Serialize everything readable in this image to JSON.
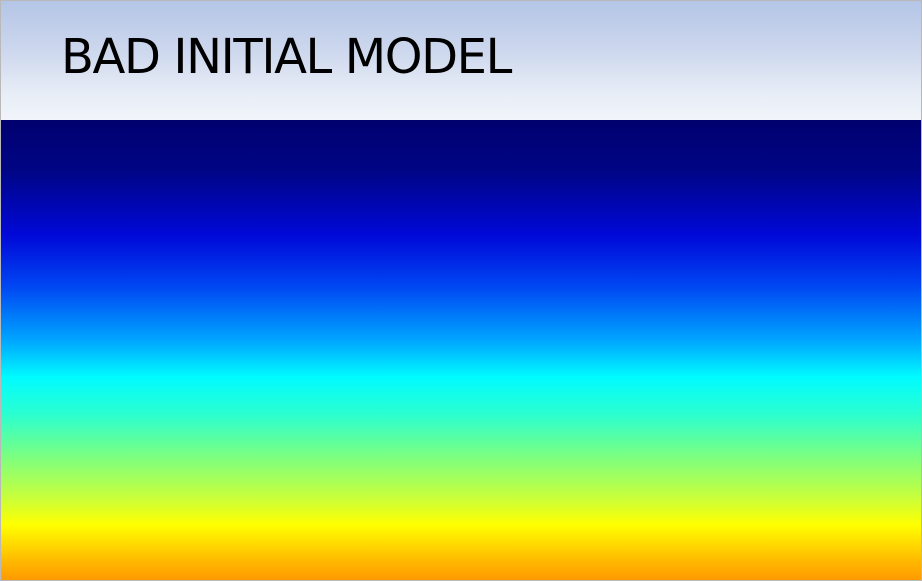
{
  "slide": {
    "title": "BAD INITIAL MODEL"
  },
  "model_field": {
    "colormap": "jet",
    "colors": [
      "#00006e",
      "#000585",
      "#0008d8",
      "#0045f2",
      "#00a6ff",
      "#00fcff",
      "#2bffd0",
      "#7aff82",
      "#c8ff3c",
      "#ffff00",
      "#ffb800",
      "#ff9a00"
    ]
  }
}
